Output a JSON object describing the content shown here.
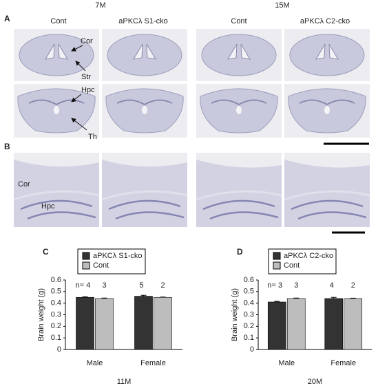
{
  "figure": {
    "panel_a": {
      "label": "A",
      "groups": [
        "7M",
        "15M"
      ],
      "columns": [
        "Cont",
        "aPKCλ S1-cko",
        "Cont",
        "aPKCλ C2-cko"
      ],
      "annotations": [
        "Cor",
        "Str",
        "Hpc",
        "Th"
      ]
    },
    "panel_b": {
      "label": "B",
      "annotations": [
        "Cor",
        "Hpc"
      ]
    }
  },
  "chart_data": [
    {
      "type": "bar",
      "panel": "C",
      "title": "11M",
      "y_label": "Brain weight (g)",
      "categories": [
        "Male",
        "Female"
      ],
      "series": [
        {
          "name": "aPKCλ S1-cko",
          "color": "#333333",
          "values": [
            0.45,
            0.46
          ],
          "errors": [
            0.006,
            0.008
          ],
          "n_labels": [
            "n= 4",
            "5"
          ]
        },
        {
          "name": "Cont",
          "color": "#bdbdbd",
          "values": [
            0.44,
            0.45
          ],
          "errors": [
            0.004,
            0.003
          ],
          "n_labels": [
            "3",
            "2"
          ]
        }
      ],
      "ylim": [
        0,
        0.6
      ],
      "yticks": [
        0,
        0.1,
        0.2,
        0.3,
        0.4,
        0.5,
        0.6
      ]
    },
    {
      "type": "bar",
      "panel": "D",
      "title": "20M",
      "y_label": "Brain weight (g)",
      "categories": [
        "Male",
        "Female"
      ],
      "series": [
        {
          "name": "aPKCλ C2-cko",
          "color": "#333333",
          "values": [
            0.41,
            0.44
          ],
          "errors": [
            0.006,
            0.01
          ],
          "n_labels": [
            "n= 3",
            "4"
          ]
        },
        {
          "name": "Cont",
          "color": "#bdbdbd",
          "values": [
            0.44,
            0.44
          ],
          "errors": [
            0.004,
            0.003
          ],
          "n_labels": [
            "3",
            "2"
          ]
        }
      ],
      "ylim": [
        0,
        0.6
      ],
      "yticks": [
        0,
        0.1,
        0.2,
        0.3,
        0.4,
        0.5,
        0.6
      ]
    }
  ]
}
